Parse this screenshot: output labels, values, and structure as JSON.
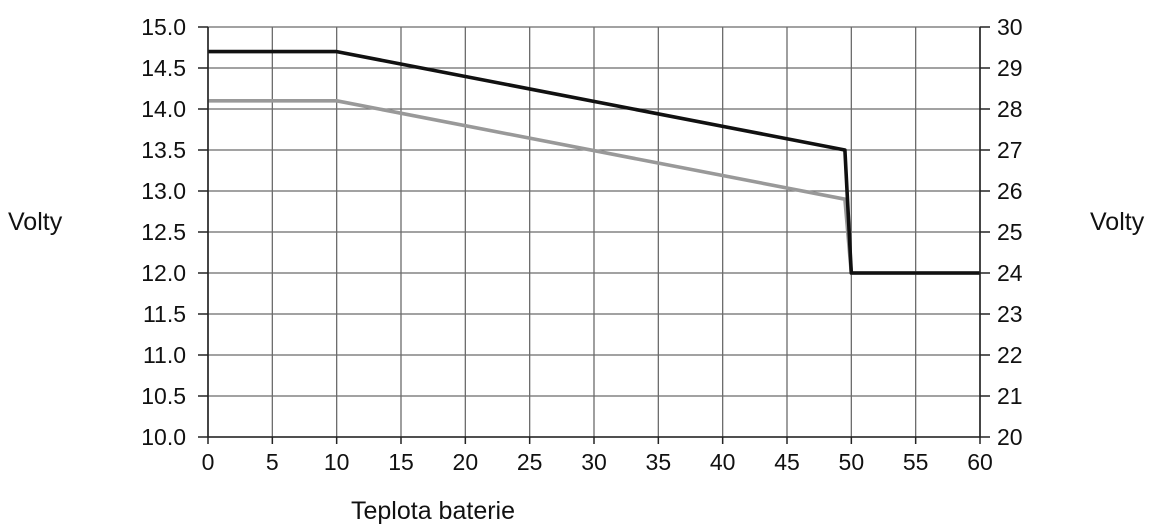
{
  "chart_data": {
    "type": "line",
    "title": "",
    "xlabel": "Teplota baterie",
    "ylabel": "Volty",
    "y2label": "Volty",
    "xlim": [
      0,
      60
    ],
    "ylim": [
      10.0,
      15.0
    ],
    "y2lim": [
      20,
      30
    ],
    "x_ticks": [
      "0",
      "5",
      "10",
      "15",
      "20",
      "25",
      "30",
      "35",
      "40",
      "45",
      "50",
      "55",
      "60"
    ],
    "y_ticks": [
      "10.0",
      "10.5",
      "11.0",
      "11.5",
      "12.0",
      "12.5",
      "13.0",
      "13.5",
      "14.0",
      "14.5",
      "15.0"
    ],
    "y2_ticks": [
      "20",
      "21",
      "22",
      "23",
      "24",
      "25",
      "26",
      "27",
      "28",
      "29",
      "30"
    ],
    "grid": true,
    "series": [
      {
        "color": "#111111",
        "x": [
          0,
          10,
          49.5,
          50,
          60
        ],
        "y": [
          14.7,
          14.7,
          13.5,
          12.0,
          12.0
        ]
      },
      {
        "color": "#999999",
        "x": [
          0,
          10,
          49.5,
          50,
          60
        ],
        "y": [
          14.1,
          14.1,
          12.9,
          12.0,
          12.0
        ]
      }
    ]
  }
}
